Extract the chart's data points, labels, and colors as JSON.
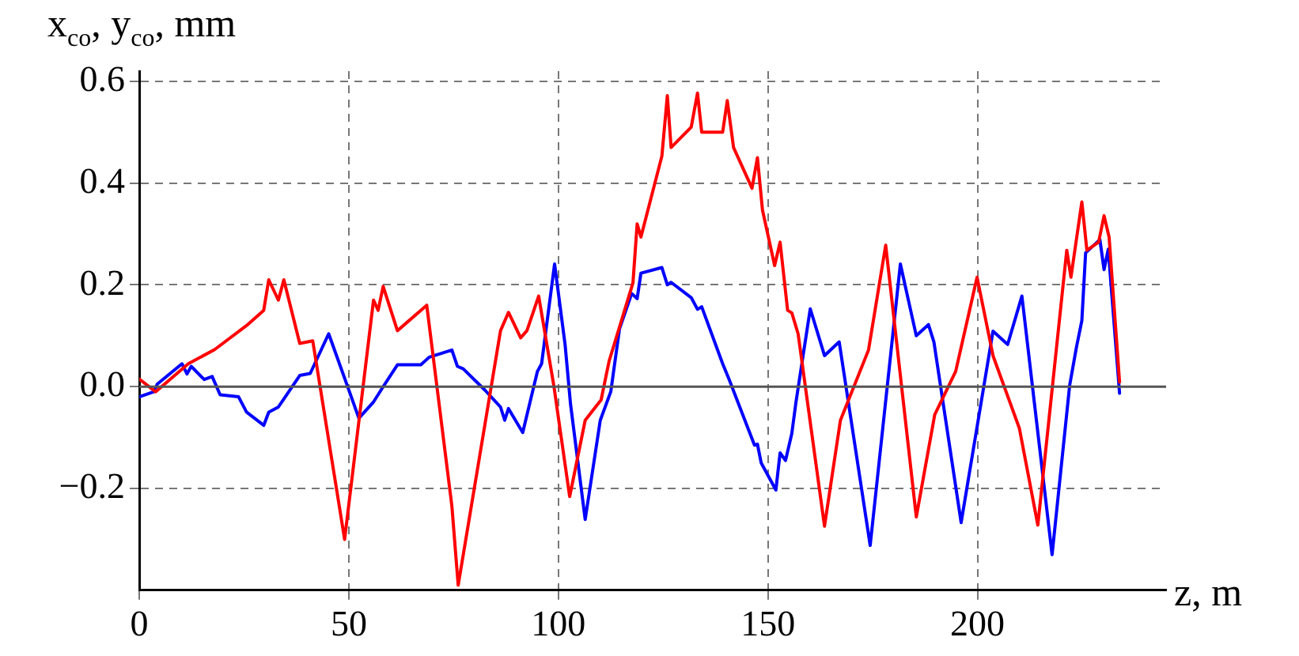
{
  "chart_data": {
    "type": "line",
    "xlabel": "z, m",
    "ylabel": "x$_{co}$, y$_{co}$, mm",
    "xlim": [
      0,
      245
    ],
    "xticks": [
      0,
      50,
      100,
      150,
      200
    ],
    "ylim": [
      -0.4,
      0.62
    ],
    "yticks": [
      {
        "value": -0.2,
        "label": "−0.2"
      },
      {
        "value": 0,
        "label": "0.0"
      },
      0.2,
      0.4,
      0.6
    ],
    "grid": true,
    "marker": "none",
    "line_style": "solid",
    "ref_lines": [
      {
        "axis": "y",
        "value": 0,
        "color": "#555555"
      }
    ],
    "series": [
      {
        "color": "#ff0000",
        "x": [
          0,
          3.9,
          11.7,
          18,
          25.6,
          29.7,
          30.9,
          33.2,
          34.5,
          38.3,
          41.4,
          49,
          55.9,
          57,
          58.2,
          61.6,
          68.6,
          74.6,
          76.1,
          86.2,
          88.1,
          91,
          92.5,
          95.3,
          98.9,
          102.7,
          106.4,
          110.2,
          112.1,
          117.8,
          118.8,
          119.7,
          124.7,
          126,
          126.9,
          131.7,
          133.2,
          134.2,
          139.2,
          140.3,
          141.8,
          146.2,
          147.5,
          148.7,
          151.6,
          152.9,
          154.7,
          155.7,
          157.2,
          163.5,
          167.3,
          174,
          178.1,
          185.4,
          189.8,
          194.8,
          199.9,
          203.7,
          210,
          214.4,
          221.3,
          222.3,
          224.9,
          226.1,
          228.9,
          230.2,
          231.4,
          233.9
        ],
        "values": [
          0.015,
          -0.01,
          0.045,
          0.073,
          0.12,
          0.15,
          0.21,
          0.17,
          0.21,
          0.085,
          0.09,
          -0.3,
          0.17,
          0.15,
          0.197,
          0.11,
          0.16,
          -0.235,
          -0.39,
          0.11,
          0.146,
          0.096,
          0.11,
          0.178,
          0.003,
          -0.216,
          -0.066,
          -0.026,
          0.05,
          0.204,
          0.32,
          0.294,
          0.453,
          0.572,
          0.47,
          0.51,
          0.577,
          0.5,
          0.5,
          0.562,
          0.47,
          0.39,
          0.45,
          0.347,
          0.238,
          0.284,
          0.15,
          0.145,
          0.104,
          -0.274,
          -0.066,
          0.072,
          0.278,
          -0.256,
          -0.055,
          0.03,
          0.215,
          0.061,
          -0.082,
          -0.272,
          0.268,
          0.215,
          0.363,
          0.268,
          0.284,
          0.336,
          0.294,
          0.009
        ]
      },
      {
        "color": "#0000ff",
        "x": [
          0,
          3.5,
          4.3,
          10.2,
          11.4,
          12.4,
          15.5,
          17.4,
          19.3,
          23.7,
          25.6,
          29.7,
          30.9,
          33.2,
          38.3,
          40.8,
          45.2,
          49.6,
          52.4,
          55.9,
          58.2,
          61.6,
          67.2,
          69.2,
          74.6,
          75.9,
          77.3,
          82.5,
          86.2,
          87.2,
          88.1,
          91.5,
          95,
          96,
          99.1,
          101.6,
          102.9,
          106.4,
          110,
          112.5,
          114.6,
          117.5,
          118.8,
          119.7,
          124.7,
          126,
          126.9,
          131.7,
          133.2,
          134.2,
          139.2,
          140.7,
          146.8,
          147.5,
          148.4,
          151.9,
          152.9,
          154.2,
          155.7,
          156.7,
          160.1,
          163.5,
          167,
          174.4,
          181.6,
          185.4,
          188.3,
          189.6,
          196.1,
          203.7,
          207.2,
          210.6,
          217.8,
          222,
          223.6,
          224.9,
          225.8,
          229.2,
          230.2,
          231.2,
          233.9
        ],
        "values": [
          -0.02,
          -0.01,
          0.005,
          0.045,
          0.025,
          0.04,
          0.014,
          0.02,
          -0.016,
          -0.02,
          -0.05,
          -0.076,
          -0.05,
          -0.04,
          0.022,
          0.026,
          0.104,
          0.003,
          -0.062,
          -0.03,
          0,
          0.043,
          0.043,
          0.058,
          0.072,
          0.04,
          0.035,
          -0.007,
          -0.04,
          -0.066,
          -0.043,
          -0.09,
          0.03,
          0.045,
          0.241,
          0.083,
          -0.034,
          -0.261,
          -0.066,
          -0.01,
          0.114,
          0.183,
          0.173,
          0.223,
          0.234,
          0.2,
          0.205,
          0.175,
          0.152,
          0.157,
          0.045,
          0.015,
          -0.115,
          -0.113,
          -0.15,
          -0.203,
          -0.13,
          -0.145,
          -0.092,
          -0.03,
          0.153,
          0.061,
          0.088,
          -0.312,
          0.241,
          0.1,
          0.122,
          0.088,
          -0.267,
          0.109,
          0.083,
          0.178,
          -0.33,
          0.003,
          0.077,
          0.13,
          0.263,
          0.289,
          0.23,
          0.27,
          -0.013
        ]
      }
    ]
  }
}
